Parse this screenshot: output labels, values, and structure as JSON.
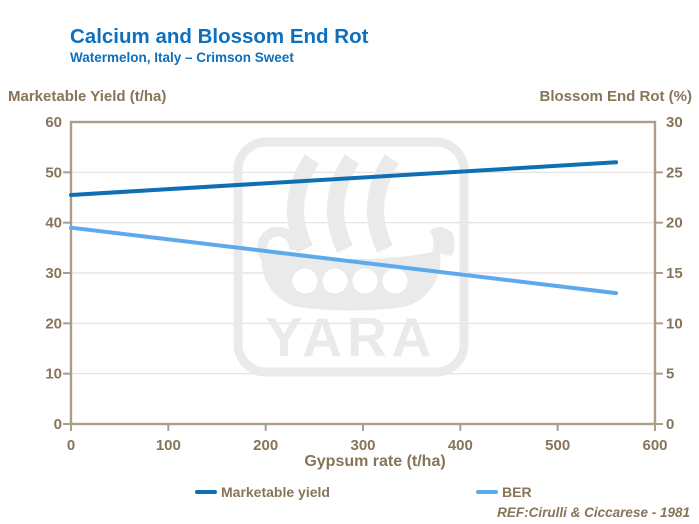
{
  "header": {
    "title": "Calcium and Blossom End Rot",
    "subtitle": "Watermelon, Italy – Crimson Sweet"
  },
  "axes": {
    "left_title": "Marketable Yield (t/ha)",
    "right_title": "Blossom End Rot (%)",
    "x_title": "Gypsum rate (t/ha)"
  },
  "legend": {
    "items": [
      {
        "label": "Marketable yield",
        "color": "#0E6FB5"
      },
      {
        "label": "BER",
        "color": "#5CA9EC"
      }
    ]
  },
  "reference": "REF:Cirulli & Ciccarese - 1981",
  "watermark": {
    "text": "YARA"
  },
  "colors": {
    "title_blue": "#0D70BE",
    "brown_text": "#877459",
    "frame": "#AB9D87",
    "grid": "#E3E1DE",
    "watermark": "#EAEAEA"
  },
  "chart_data": {
    "type": "line",
    "title": "Calcium and Blossom End Rot",
    "subtitle": "Watermelon, Italy – Crimson Sweet",
    "xlabel": "Gypsum rate (t/ha)",
    "ylabel_left": "Marketable Yield (t/ha)",
    "ylabel_right": "Blossom End Rot (%)",
    "xlim": [
      0,
      600
    ],
    "ylim_left": [
      0,
      60
    ],
    "ylim_right": [
      0,
      30
    ],
    "x_ticks": [
      0,
      100,
      200,
      300,
      400,
      500,
      600
    ],
    "y_left_ticks": [
      0,
      10,
      20,
      30,
      40,
      50,
      60
    ],
    "y_right_ticks": [
      0,
      5,
      10,
      15,
      20,
      25,
      30
    ],
    "grid": "horizontal",
    "legend_position": "bottom",
    "series": [
      {
        "name": "Marketable yield",
        "axis": "left",
        "color": "#0E6FB5",
        "x": [
          0,
          560
        ],
        "y": [
          45.5,
          52
        ]
      },
      {
        "name": "BER",
        "axis": "right",
        "color": "#5CA9EC",
        "x": [
          0,
          560
        ],
        "y": [
          19.5,
          13
        ]
      }
    ],
    "reference": "REF:Cirulli & Ciccarese - 1981",
    "watermark": "YARA"
  }
}
